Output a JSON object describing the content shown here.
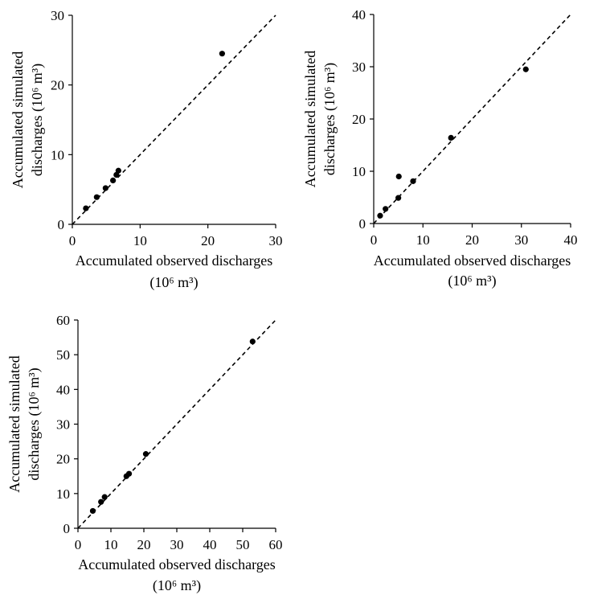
{
  "chart_data": [
    {
      "type": "scatter",
      "title": "",
      "xlabel": "Accumulated observed discharges",
      "xlabel_unit": "(10⁶ m³)",
      "ylabel": "Accumulated simulated",
      "ylabel_unit": "discharges (10⁶ m³)",
      "xlim": [
        0,
        30
      ],
      "ylim": [
        0,
        30
      ],
      "xticks": [
        0,
        10,
        20,
        30
      ],
      "yticks": [
        0,
        10,
        20,
        30
      ],
      "grid": false,
      "legend": "none",
      "reference_line": "1:1 dashed",
      "x": [
        2.0,
        3.6,
        4.9,
        6.0,
        6.5,
        6.8,
        22.1
      ],
      "y": [
        2.3,
        3.9,
        5.2,
        6.3,
        7.1,
        7.7,
        24.5
      ]
    },
    {
      "type": "scatter",
      "title": "",
      "xlabel": "Accumulated observed discharges",
      "xlabel_unit": "(10⁶ m³)",
      "ylabel": "Accumulated simulated",
      "ylabel_unit": "discharges (10⁶ m³)",
      "xlim": [
        0,
        40
      ],
      "ylim": [
        0,
        40
      ],
      "xticks": [
        0,
        10,
        20,
        30,
        40
      ],
      "yticks": [
        0,
        10,
        20,
        30,
        40
      ],
      "grid": false,
      "legend": "none",
      "reference_line": "1:1 dashed",
      "x": [
        1.3,
        2.4,
        5.0,
        5.1,
        8.0,
        15.7,
        30.9
      ],
      "y": [
        1.5,
        2.8,
        4.9,
        9.0,
        8.1,
        16.4,
        29.5
      ]
    },
    {
      "type": "scatter",
      "title": "",
      "xlabel": "Accumulated observed discharges",
      "xlabel_unit": "(10⁶ m³)",
      "ylabel": "Accumulated simulated",
      "ylabel_unit": "discharges (10⁶ m³)",
      "xlim": [
        0,
        60
      ],
      "ylim": [
        0,
        60
      ],
      "xticks": [
        0,
        10,
        20,
        30,
        40,
        50,
        60
      ],
      "yticks": [
        0,
        10,
        20,
        30,
        40,
        50,
        60
      ],
      "grid": false,
      "legend": "none",
      "reference_line": "1:1 dashed",
      "x": [
        4.5,
        7.0,
        8.1,
        14.7,
        15.5,
        20.6,
        53.0
      ],
      "y": [
        5.0,
        7.6,
        9.0,
        15.0,
        15.7,
        21.4,
        53.8
      ]
    }
  ],
  "colors": {
    "marker": "#000000",
    "axis": "#000000",
    "reference_line": "#000000"
  }
}
